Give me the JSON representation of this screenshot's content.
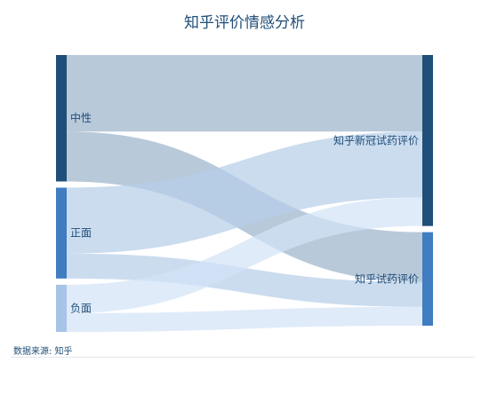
{
  "chart_data": {
    "type": "sankey",
    "title": "知乎评价情感分析",
    "nodes": [
      {
        "id": "neutral",
        "name": "中性",
        "column": 0,
        "color": "#1f4e79"
      },
      {
        "id": "positive",
        "name": "正面",
        "column": 0,
        "color": "#3f7cc0"
      },
      {
        "id": "negative",
        "name": "负面",
        "column": 0,
        "color": "#a7c4e8"
      },
      {
        "id": "covid",
        "name": "知乎新冠试药评价",
        "column": 1,
        "color": "#1f4e79"
      },
      {
        "id": "trial",
        "name": "知乎试药评价",
        "column": 1,
        "color": "#3f7cc0"
      }
    ],
    "links": [
      {
        "source": "neutral",
        "target": "covid",
        "value": 86,
        "color": "#9db4cc"
      },
      {
        "source": "neutral",
        "target": "trial",
        "value": 56,
        "color": "#9db4cc"
      },
      {
        "source": "positive",
        "target": "covid",
        "value": 74,
        "color": "#b7cfe9"
      },
      {
        "source": "positive",
        "target": "trial",
        "value": 28,
        "color": "#b7cfe9"
      },
      {
        "source": "negative",
        "target": "covid",
        "value": 32,
        "color": "#d3e3f6"
      },
      {
        "source": "negative",
        "target": "trial",
        "value": 21,
        "color": "#d3e3f6"
      }
    ]
  },
  "footer": {
    "source_text": "数据来源: 知乎"
  }
}
